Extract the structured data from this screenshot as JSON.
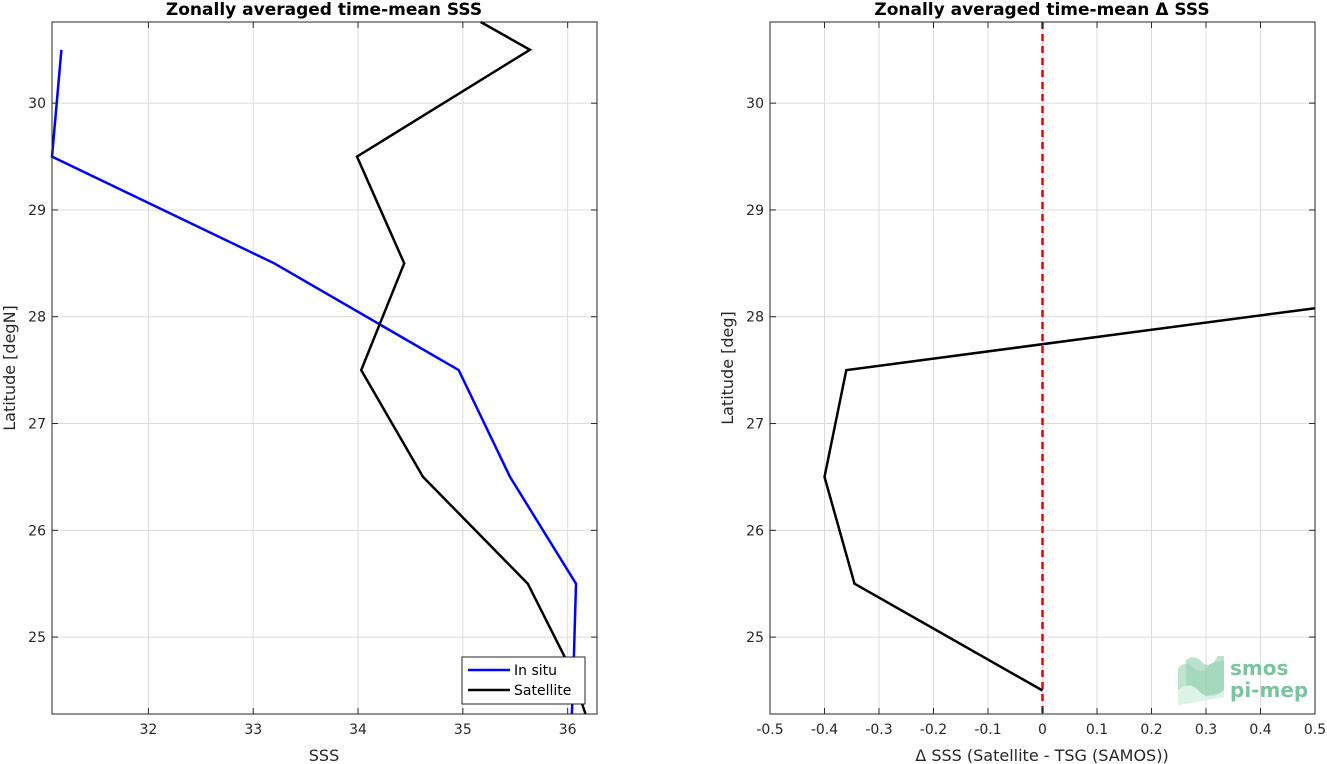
{
  "chart_data": [
    {
      "type": "line",
      "title": "Zonally averaged time-mean SSS",
      "xlabel": "SSS",
      "ylabel": "Latitude [degN]",
      "xlim": [
        31.08,
        36.28
      ],
      "ylim": [
        24.28,
        30.76
      ],
      "xticks": [
        32,
        33,
        34,
        35,
        36
      ],
      "yticks": [
        25,
        26,
        27,
        28,
        29,
        30
      ],
      "grid": true,
      "legend_position": "bottom-right",
      "series": [
        {
          "name": "In situ",
          "color": "#0000ff",
          "points": [
            [
              31.17,
              30.5
            ],
            [
              31.08,
              29.5
            ],
            [
              33.2,
              28.5
            ],
            [
              34.96,
              27.5
            ],
            [
              35.45,
              26.5
            ],
            [
              36.08,
              25.5
            ],
            [
              36.05,
              24.5
            ],
            [
              36.04,
              24.28
            ]
          ]
        },
        {
          "name": "Satellite",
          "color": "#000000",
          "points": [
            [
              35.17,
              30.76
            ],
            [
              35.64,
              30.5
            ],
            [
              33.99,
              29.5
            ],
            [
              34.44,
              28.5
            ],
            [
              34.03,
              27.5
            ],
            [
              34.62,
              26.5
            ],
            [
              35.62,
              25.5
            ],
            [
              36.02,
              24.72
            ],
            [
              36.17,
              24.28
            ]
          ]
        }
      ]
    },
    {
      "type": "line",
      "title": "Zonally averaged time-mean Δ SSS",
      "xlabel": "Δ SSS (Satellite - TSG (SAMOS))",
      "ylabel": "Latitude [deg]",
      "xlim": [
        -0.5,
        0.5
      ],
      "ylim": [
        24.28,
        30.76
      ],
      "xticks": [
        -0.5,
        -0.4,
        -0.3,
        -0.2,
        -0.1,
        0,
        0.1,
        0.2,
        0.3,
        0.4,
        0.5
      ],
      "xtick_labels": [
        "-0.5",
        "-0.4",
        "-0.3",
        "-0.2",
        "-0.1",
        "0",
        "0.1",
        "0.2",
        "0.3",
        "0.4",
        "0.5"
      ],
      "yticks": [
        25,
        26,
        27,
        28,
        29,
        30
      ],
      "grid": true,
      "reference_line": {
        "x": 0,
        "color": "#e8000b",
        "style": "dashed"
      },
      "series": [
        {
          "color": "#000000",
          "points": [
            [
              0.5,
              28.08
            ],
            [
              -0.36,
              27.5
            ],
            [
              -0.4,
              26.5
            ],
            [
              -0.345,
              25.5
            ],
            [
              0,
              24.5
            ]
          ]
        }
      ]
    }
  ],
  "logo": {
    "line1": "smos",
    "line2": "pi-mep",
    "color": "#7cc49e"
  }
}
